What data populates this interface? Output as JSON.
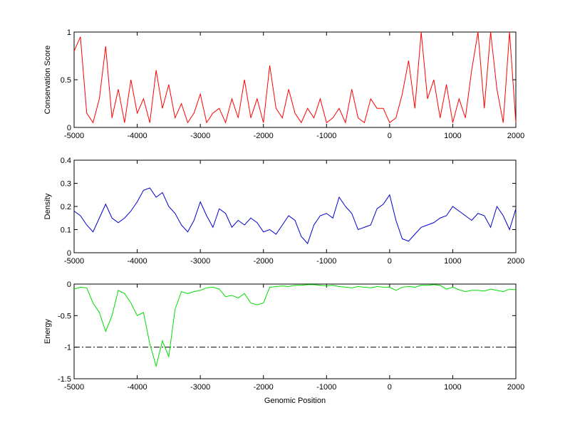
{
  "chart_data": [
    {
      "type": "line",
      "y_label": "Conservation Score",
      "x": [
        -5000,
        -4900,
        -4800,
        -4700,
        -4600,
        -4500,
        -4400,
        -4300,
        -4200,
        -4100,
        -4000,
        -3900,
        -3800,
        -3700,
        -3600,
        -3500,
        -3400,
        -3300,
        -3200,
        -3100,
        -3000,
        -2900,
        -2800,
        -2700,
        -2600,
        -2500,
        -2400,
        -2300,
        -2200,
        -2100,
        -2000,
        -1900,
        -1800,
        -1700,
        -1600,
        -1500,
        -1400,
        -1300,
        -1200,
        -1100,
        -1000,
        -900,
        -800,
        -700,
        -600,
        -500,
        -400,
        -300,
        -200,
        -100,
        0,
        100,
        200,
        300,
        400,
        500,
        600,
        700,
        800,
        900,
        1000,
        1100,
        1200,
        1300,
        1400,
        1500,
        1600,
        1700,
        1800,
        1900,
        2000
      ],
      "series": [
        {
          "color": "#ff0000",
          "values": [
            0.8,
            0.95,
            0.15,
            0.05,
            0.3,
            0.85,
            0.1,
            0.4,
            0.05,
            0.5,
            0.15,
            0.3,
            0.05,
            0.6,
            0.2,
            0.45,
            0.1,
            0.25,
            0.05,
            0.15,
            0.35,
            0.05,
            0.15,
            0.2,
            0.05,
            0.3,
            0.1,
            0.5,
            0.1,
            0.3,
            0.05,
            0.65,
            0.2,
            0.1,
            0.4,
            0.15,
            0.05,
            0.2,
            0.1,
            0.3,
            0.05,
            0.1,
            0.2,
            0.05,
            0.4,
            0.1,
            0.05,
            0.3,
            0.2,
            0.2,
            0.05,
            0.1,
            0.35,
            0.7,
            0.2,
            1,
            0.3,
            0.5,
            0.1,
            0.45,
            0.05,
            0.3,
            0.1,
            0.6,
            1,
            0.2,
            1,
            0.4,
            0.05,
            1,
            0.05
          ]
        }
      ],
      "xlim": [
        -5000,
        2000
      ],
      "xticks": [
        -5000,
        -4000,
        -3000,
        -2000,
        -1000,
        0,
        1000,
        2000
      ],
      "ylim": [
        0,
        1
      ],
      "yticks": [
        0,
        0.5,
        1
      ]
    },
    {
      "type": "line",
      "y_label": "Density",
      "x": [
        -5000,
        -4900,
        -4800,
        -4700,
        -4600,
        -4500,
        -4400,
        -4300,
        -4200,
        -4100,
        -4000,
        -3900,
        -3800,
        -3700,
        -3600,
        -3500,
        -3400,
        -3300,
        -3200,
        -3100,
        -3000,
        -2900,
        -2800,
        -2700,
        -2600,
        -2500,
        -2400,
        -2300,
        -2200,
        -2100,
        -2000,
        -1900,
        -1800,
        -1700,
        -1600,
        -1500,
        -1400,
        -1300,
        -1200,
        -1100,
        -1000,
        -900,
        -800,
        -700,
        -600,
        -500,
        -400,
        -300,
        -200,
        -100,
        0,
        100,
        200,
        300,
        400,
        500,
        600,
        700,
        800,
        900,
        1000,
        1100,
        1200,
        1300,
        1400,
        1500,
        1600,
        1700,
        1800,
        1900,
        2000
      ],
      "series": [
        {
          "color": "#0000cc",
          "values": [
            0.18,
            0.16,
            0.12,
            0.09,
            0.15,
            0.21,
            0.15,
            0.13,
            0.15,
            0.18,
            0.22,
            0.27,
            0.28,
            0.24,
            0.26,
            0.2,
            0.17,
            0.12,
            0.09,
            0.14,
            0.22,
            0.16,
            0.11,
            0.19,
            0.17,
            0.11,
            0.14,
            0.12,
            0.15,
            0.13,
            0.09,
            0.1,
            0.08,
            0.12,
            0.16,
            0.14,
            0.07,
            0.04,
            0.12,
            0.16,
            0.17,
            0.15,
            0.24,
            0.2,
            0.17,
            0.1,
            0.11,
            0.12,
            0.19,
            0.21,
            0.25,
            0.14,
            0.06,
            0.05,
            0.08,
            0.11,
            0.12,
            0.13,
            0.15,
            0.16,
            0.2,
            0.18,
            0.16,
            0.14,
            0.17,
            0.16,
            0.11,
            0.2,
            0.16,
            0.1,
            0.19
          ]
        }
      ],
      "xlim": [
        -5000,
        2000
      ],
      "xticks": [
        -5000,
        -4000,
        -3000,
        -2000,
        -1000,
        0,
        1000,
        2000
      ],
      "ylim": [
        0,
        0.4
      ],
      "yticks": [
        0,
        0.1,
        0.2,
        0.3,
        0.4
      ]
    },
    {
      "type": "line",
      "y_label": "Energy",
      "x_label": "Genomic Position",
      "x": [
        -5000,
        -4900,
        -4800,
        -4700,
        -4600,
        -4500,
        -4400,
        -4300,
        -4200,
        -4100,
        -4000,
        -3900,
        -3800,
        -3700,
        -3600,
        -3500,
        -3400,
        -3300,
        -3200,
        -3100,
        -3000,
        -2900,
        -2800,
        -2700,
        -2600,
        -2500,
        -2400,
        -2300,
        -2200,
        -2100,
        -2000,
        -1900,
        -1800,
        -1700,
        -1600,
        -1500,
        -1400,
        -1300,
        -1200,
        -1100,
        -1000,
        -900,
        -800,
        -700,
        -600,
        -500,
        -400,
        -300,
        -200,
        -100,
        0,
        100,
        200,
        300,
        400,
        500,
        600,
        700,
        800,
        900,
        1000,
        1100,
        1200,
        1300,
        1400,
        1500,
        1600,
        1700,
        1800,
        1900,
        2000
      ],
      "series": [
        {
          "color": "#00dd00",
          "values": [
            -0.08,
            -0.05,
            -0.06,
            -0.3,
            -0.45,
            -0.75,
            -0.5,
            -0.1,
            -0.15,
            -0.3,
            -0.5,
            -0.45,
            -0.95,
            -1.3,
            -0.9,
            -1.15,
            -0.4,
            -0.12,
            -0.15,
            -0.12,
            -0.1,
            -0.06,
            -0.05,
            -0.08,
            -0.2,
            -0.18,
            -0.22,
            -0.15,
            -0.3,
            -0.33,
            -0.3,
            -0.05,
            -0.04,
            -0.03,
            -0.04,
            -0.02,
            -0.02,
            -0.01,
            -0.01,
            -0.02,
            -0.03,
            -0.02,
            -0.04,
            -0.05,
            -0.06,
            -0.04,
            -0.05,
            -0.06,
            -0.04,
            -0.05,
            -0.05,
            -0.1,
            -0.05,
            -0.04,
            -0.05,
            -0.02,
            -0.02,
            -0.01,
            -0.02,
            -0.08,
            -0.05,
            -0.09,
            -0.12,
            -0.1,
            -0.1,
            -0.11,
            -0.08,
            -0.1,
            -0.12,
            -0.08,
            -0.09
          ]
        }
      ],
      "hline": -1,
      "xlim": [
        -5000,
        2000
      ],
      "xticks": [
        -5000,
        -4000,
        -3000,
        -2000,
        -1000,
        0,
        1000,
        2000
      ],
      "ylim": [
        -1.5,
        0
      ],
      "yticks": [
        -1.5,
        -1,
        -0.5,
        0
      ]
    }
  ]
}
